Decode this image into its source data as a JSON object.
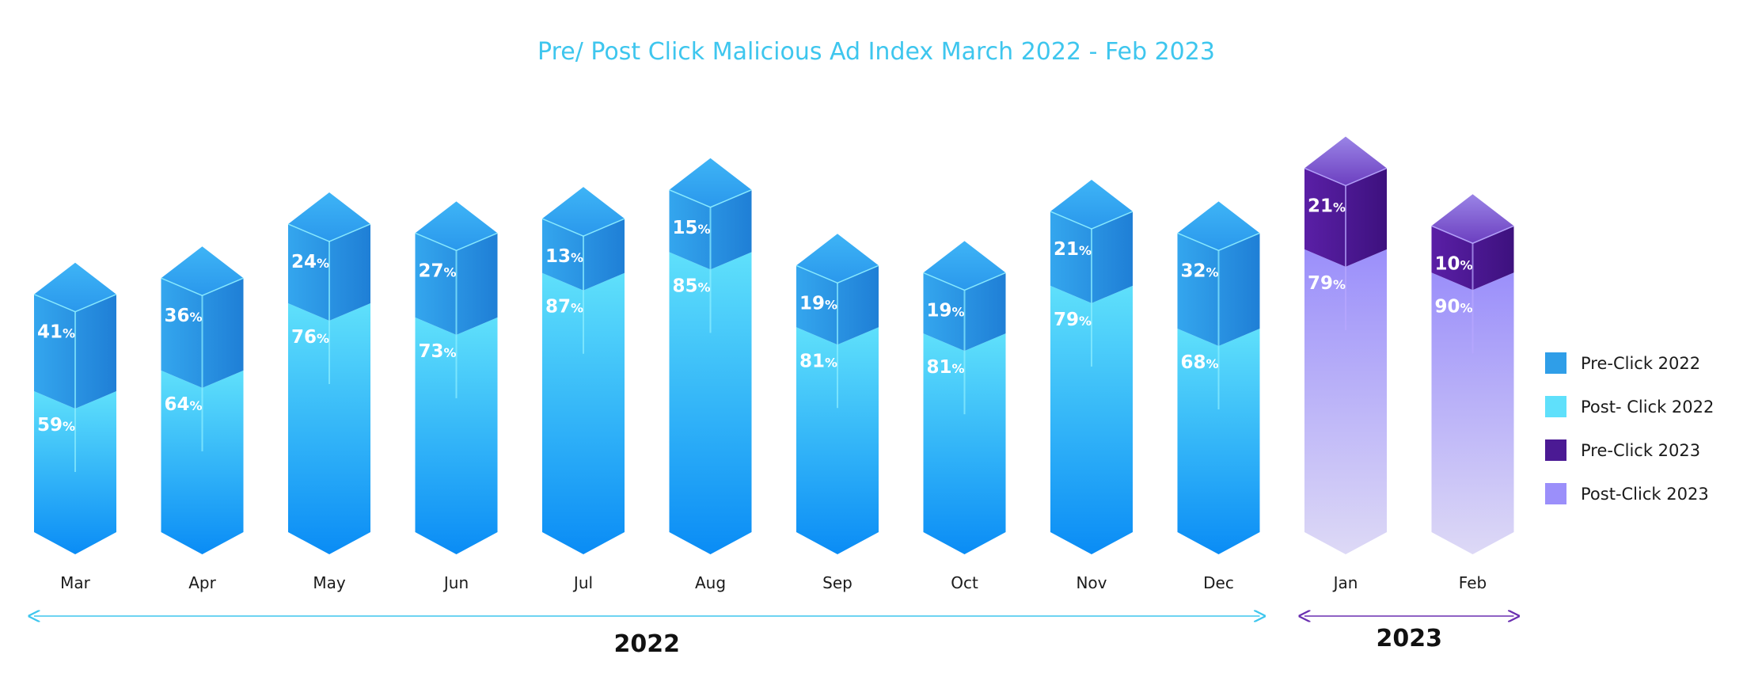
{
  "chart_data": {
    "type": "bar",
    "title": "Pre/ Post Click Malicious Ad Index March 2022 - Feb 2023",
    "categories": [
      "Mar",
      "Apr",
      "May",
      "Jun",
      "Jul",
      "Aug",
      "Sep",
      "Oct",
      "Nov",
      "Dec",
      "Jan",
      "Feb"
    ],
    "series": [
      {
        "name": "Pre-Click 2022",
        "values": [
          41,
          36,
          24,
          27,
          13,
          15,
          19,
          19,
          21,
          32,
          null,
          null
        ]
      },
      {
        "name": "Post- Click 2022",
        "values": [
          59,
          64,
          76,
          73,
          87,
          85,
          81,
          81,
          79,
          68,
          null,
          null
        ]
      },
      {
        "name": "Pre-Click 2023",
        "values": [
          null,
          null,
          null,
          null,
          null,
          null,
          null,
          null,
          null,
          null,
          21,
          10
        ]
      },
      {
        "name": "Post-Click 2023",
        "values": [
          null,
          null,
          null,
          null,
          null,
          null,
          null,
          null,
          null,
          null,
          79,
          90
        ]
      }
    ],
    "value_suffix": "%",
    "year_groups": [
      {
        "label": "2022",
        "from": "Mar",
        "to": "Dec"
      },
      {
        "label": "2023",
        "from": "Jan",
        "to": "Feb"
      }
    ],
    "legend_position": "right",
    "grid": false,
    "colors": {
      "pre_2022": "#2f9ee8",
      "post_2022": "#5fe0fb",
      "post_2022_bottom": "#0a8cf5",
      "pre_2023": "#4b1a94",
      "post_2023": "#9b8ffa",
      "post_2023_bottom": "#ddd9f6",
      "title": "#3ec6ee",
      "line_2022": "#3ec6ee",
      "line_2023": "#6a2fb0"
    }
  }
}
